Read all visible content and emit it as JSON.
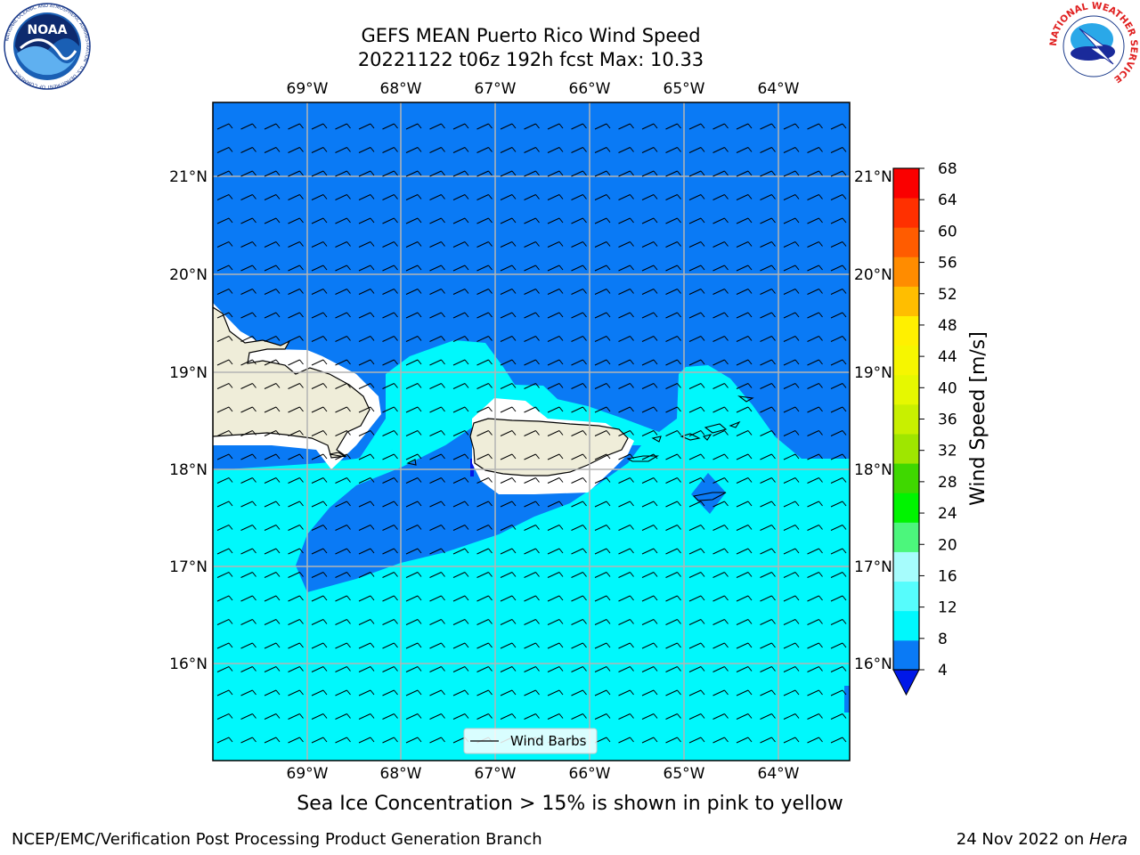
{
  "header": {
    "title_line1": "GEFS MEAN Puerto Rico Wind Speed",
    "title_line2": "20221122 t06z 192h fcst   Max: 10.33"
  },
  "logos": {
    "noaa_text": "NOAA",
    "noaa_ring": "NATIONAL OCEANIC AND ATMOSPHERIC ADMINISTRATION · U.S. DEPARTMENT OF COMMERCE",
    "nws_ring": "NATIONAL WEATHER SERVICE"
  },
  "map": {
    "lon_labels": [
      "69°W",
      "68°W",
      "67°W",
      "66°W",
      "65°W",
      "64°W"
    ],
    "lat_labels": [
      "21°N",
      "20°N",
      "19°N",
      "18°N",
      "17°N",
      "16°N"
    ],
    "legend_label": "Wind Barbs",
    "colors": {
      "land": "#efedd9",
      "speed_4_8": "#0a7af5",
      "speed_8_12": "#00f8fc",
      "speed_below_4": "#0018e8",
      "gridline": "#b4b4b4"
    }
  },
  "colorbar": {
    "label": "Wind Speed [m/s]",
    "ticks": [
      "4",
      "8",
      "12",
      "16",
      "20",
      "24",
      "28",
      "32",
      "36",
      "40",
      "44",
      "48",
      "52",
      "56",
      "60",
      "64",
      "68"
    ],
    "colors": [
      "#0a7af5",
      "#00f8fc",
      "#56fcfc",
      "#a6fcfc",
      "#4cf67c",
      "#00f400",
      "#3fd800",
      "#9fe600",
      "#c8f000",
      "#e6f800",
      "#f6f600",
      "#fff000",
      "#ffbe00",
      "#ff8c00",
      "#ff5c00",
      "#ff3000",
      "#fa0000"
    ],
    "extend_color": "#0018e8"
  },
  "subtitle": "Sea Ice Concentration > 15% is shown in pink to yellow",
  "footer": {
    "left": "NCEP/EMC/Verification Post Processing Product Generation Branch",
    "right_date": "24 Nov 2022 on ",
    "right_host": "Hera"
  }
}
